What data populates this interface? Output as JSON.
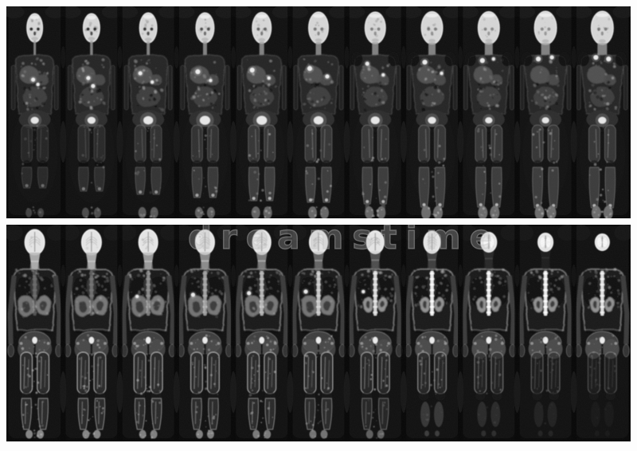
{
  "canvas": {
    "background": "#ffffff",
    "strip_background": "#050505"
  },
  "watermark": {
    "text": "dreamstime"
  },
  "montage": {
    "rows": [
      {
        "name": "coronal-series-anterior",
        "panel_count": 11,
        "panels": [
          {
            "hw": 10,
            "hh": 18,
            "eye": 0.9,
            "nw": 3,
            "sw": 24,
            "legEnd": 228,
            "legOp": 0.55,
            "contLegs": false,
            "fr": 4,
            "feetOp": 0.5,
            "bladder": 5,
            "spots": [
              [
                -2,
                92,
                2.5
              ],
              [
                4,
                98,
                2
              ]
            ]
          },
          {
            "hw": 10.5,
            "hh": 18,
            "eye": 0.9,
            "nw": 3.5,
            "sw": 24,
            "legEnd": 232,
            "legOp": 0.65,
            "contLegs": false,
            "fr": 4.5,
            "feetOp": 0.6,
            "bladder": 5,
            "spots": [
              [
                -4,
                90,
                2.5
              ],
              [
                2,
                100,
                2.5
              ]
            ]
          },
          {
            "hw": 11,
            "hh": 19,
            "eye": 0.85,
            "nw": 4,
            "sw": 24.5,
            "legEnd": 236,
            "legOp": 0.8,
            "contLegs": false,
            "fr": 5,
            "feetOp": 0.75,
            "bladder": 6,
            "spots": [
              [
                -10,
                84,
                2.5
              ],
              [
                5,
                95,
                2
              ]
            ]
          },
          {
            "hw": 11.5,
            "hh": 19,
            "eye": 0.7,
            "nw": 5,
            "sw": 25,
            "legEnd": 240,
            "legOp": 0.9,
            "contLegs": false,
            "fr": 5,
            "feetOp": 0.8,
            "bladder": 6.5,
            "spots": [
              [
                -9,
                82,
                3
              ],
              [
                7,
                93,
                2
              ]
            ]
          },
          {
            "hw": 12,
            "hh": 19.5,
            "eye": 0.6,
            "nw": 6,
            "sw": 25,
            "legEnd": 244,
            "legOp": 1,
            "contLegs": false,
            "fr": 5.5,
            "feetOp": 0.85,
            "bladder": 6.5,
            "spots": [
              [
                -12,
                80,
                3
              ],
              [
                9,
                90,
                2
              ]
            ]
          },
          {
            "hw": 12.5,
            "hh": 20,
            "eye": 0.5,
            "nw": 7,
            "sw": 25.5,
            "legEnd": 246,
            "legOp": 1,
            "contLegs": false,
            "fr": 5.5,
            "feetOp": 0.9,
            "bladder": 6,
            "spots": [
              [
                -11,
                78,
                3
              ],
              [
                11,
                88,
                2.5
              ]
            ]
          },
          {
            "hw": 13,
            "hh": 20,
            "eye": 0.45,
            "nw": 8,
            "sw": 26,
            "legEnd": 248,
            "legOp": 1,
            "contLegs": true,
            "fr": 5.5,
            "feetOp": 0.9,
            "bladder": 5.5,
            "spots": [
              [
                -10,
                72,
                2.5
              ],
              [
                10,
                86,
                2
              ]
            ]
          },
          {
            "hw": 13.5,
            "hh": 20.5,
            "eye": 0.45,
            "nw": 9,
            "sw": 26,
            "legEnd": 252,
            "legOp": 1,
            "contLegs": true,
            "fr": 6,
            "feetOp": 0.95,
            "bladder": 5,
            "spots": [
              [
                -9,
                70,
                3
              ],
              [
                12,
                84,
                2
              ]
            ]
          },
          {
            "hw": 13.5,
            "hh": 20.5,
            "eye": 0.4,
            "nw": 10,
            "sw": 26,
            "legEnd": 252,
            "legOp": 1,
            "contLegs": true,
            "fr": 6,
            "feetOp": 0.95,
            "bladder": 4.5,
            "spots": [
              [
                -8,
                68,
                3
              ],
              [
                6,
                66,
                2
              ]
            ]
          },
          {
            "hw": 14,
            "hh": 21,
            "eye": 0.4,
            "nw": 11,
            "sw": 26.5,
            "legEnd": 253,
            "legOp": 1,
            "contLegs": true,
            "fr": 6,
            "feetOp": 0.95,
            "bladder": 4.5,
            "spots": [
              [
                -9,
                66,
                3
              ],
              [
                8,
                64,
                2.5
              ]
            ]
          },
          {
            "hw": 14,
            "hh": 21,
            "eye": 0.45,
            "nw": 12,
            "sw": 26.5,
            "legEnd": 253,
            "legOp": 1,
            "contLegs": true,
            "fr": 6,
            "feetOp": 0.95,
            "bladder": 5,
            "spots": [
              [
                -8,
                64,
                3
              ],
              [
                8,
                66,
                3
              ]
            ]
          }
        ]
      },
      {
        "name": "coronal-series-posterior",
        "panel_count": 11,
        "panels": [
          {
            "hw": 12.5,
            "hh": 16,
            "jaw": 1,
            "spine": 0.25,
            "organ": "large",
            "spot": null,
            "legOp": 1,
            "calfOp": 0.95,
            "feetOp": 0.9,
            "calfBlob": false
          },
          {
            "hw": 12.5,
            "hh": 16,
            "jaw": 1,
            "spine": 0.3,
            "organ": "large",
            "spot": null,
            "legOp": 1,
            "calfOp": 0.95,
            "feetOp": 0.9,
            "calfBlob": false
          },
          {
            "hw": 12,
            "hh": 16,
            "jaw": 0.9,
            "spine": 0.45,
            "organ": "large",
            "spot": [
              -14,
              90,
              2
            ],
            "legOp": 1,
            "calfOp": 0.95,
            "feetOp": 0.85,
            "calfBlob": false
          },
          {
            "hw": 12,
            "hh": 15.5,
            "jaw": 0.8,
            "spine": 0.6,
            "organ": "large",
            "spot": [
              -15,
              88,
              2.5
            ],
            "legOp": 1,
            "calfOp": 0.9,
            "feetOp": 0.85,
            "calfBlob": false
          },
          {
            "hw": 11.5,
            "hh": 15.5,
            "jaw": 0.7,
            "spine": 0.7,
            "organ": "large",
            "spot": [
              -16,
              86,
              2.5
            ],
            "legOp": 1,
            "calfOp": 0.9,
            "feetOp": 0.8,
            "calfBlob": false
          },
          {
            "hw": 11.5,
            "hh": 15,
            "jaw": 0.55,
            "spine": 0.8,
            "organ": "large",
            "spot": [
              -16,
              84,
              2.5
            ],
            "legOp": 0.95,
            "calfOp": 0.85,
            "feetOp": 0.75,
            "calfBlob": false
          },
          {
            "hw": 11,
            "hh": 14.5,
            "jaw": 0.4,
            "spine": 0.9,
            "organ": "kidney",
            "spot": [
              -15,
              84,
              2
            ],
            "legOp": 0.9,
            "calfOp": 0.7,
            "feetOp": 0.6,
            "calfBlob": false
          },
          {
            "hw": 10.5,
            "hh": 14,
            "jaw": 0.3,
            "spine": 1,
            "organ": "kidney",
            "spot": null,
            "legOp": 0.8,
            "calfOp": 0.55,
            "feetOp": 0.45,
            "calfBlob": true
          },
          {
            "hw": 10,
            "hh": 12.5,
            "jaw": 0.15,
            "spine": 1,
            "organ": "kidney",
            "spot": null,
            "legOp": 0.65,
            "calfOp": 0.35,
            "feetOp": 0.3,
            "calfBlob": true
          },
          {
            "hw": 9.5,
            "hh": 11.5,
            "jaw": 0.08,
            "spine": 1,
            "organ": "kidney",
            "spot": null,
            "legOp": 0.5,
            "calfOp": 0.22,
            "feetOp": 0.18,
            "calfBlob": true
          },
          {
            "hw": 9,
            "hh": 10.5,
            "jaw": 0,
            "spine": 0.95,
            "organ": "kidney",
            "spot": null,
            "legOp": 0.42,
            "calfOp": 0.1,
            "feetOp": 0.08,
            "calfBlob": true
          }
        ]
      }
    ]
  }
}
